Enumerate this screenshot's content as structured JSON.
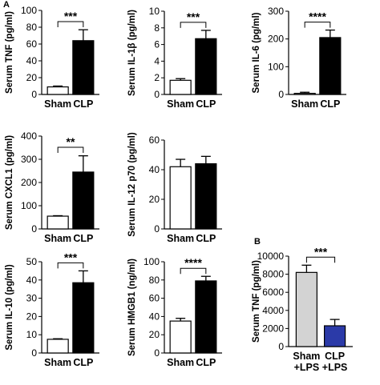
{
  "panel_labels": {
    "a": "A",
    "b": "B"
  },
  "chart_data": [
    {
      "type": "bar",
      "panel": "A",
      "ylabel": "Serum TNF (pg/ml)",
      "categories": [
        "Sham",
        "CLP"
      ],
      "values": [
        9,
        64
      ],
      "errors": [
        1,
        13
      ],
      "ylim": [
        0,
        100
      ],
      "yticks": [
        0,
        20,
        40,
        60,
        80,
        100
      ],
      "significance": "***",
      "bar_colors": [
        "#ffffff",
        "#000000"
      ]
    },
    {
      "type": "bar",
      "panel": "A",
      "ylabel": "Serum IL-1β (pg/ml)",
      "categories": [
        "Sham",
        "CLP"
      ],
      "values": [
        1.7,
        6.7
      ],
      "errors": [
        0.2,
        1.0
      ],
      "ylim": [
        0,
        10
      ],
      "yticks": [
        0,
        2,
        4,
        6,
        8,
        10
      ],
      "significance": "***",
      "bar_colors": [
        "#ffffff",
        "#000000"
      ]
    },
    {
      "type": "bar",
      "panel": "A",
      "ylabel": "Serum IL-6 (pg/ml)",
      "categories": [
        "Sham",
        "CLP"
      ],
      "values": [
        4,
        205
      ],
      "errors": [
        4,
        27
      ],
      "ylim": [
        0,
        300
      ],
      "yticks": [
        0,
        100,
        200,
        300
      ],
      "significance": "****",
      "bar_colors": [
        "#ffffff",
        "#000000"
      ]
    },
    {
      "type": "bar",
      "panel": "A",
      "ylabel": "Serum CXCL1 (pg/ml)",
      "categories": [
        "Sham",
        "CLP"
      ],
      "values": [
        55,
        245
      ],
      "errors": [
        2,
        70
      ],
      "ylim": [
        0,
        400
      ],
      "yticks": [
        0,
        100,
        200,
        300,
        400
      ],
      "significance": "**",
      "bar_colors": [
        "#ffffff",
        "#000000"
      ]
    },
    {
      "type": "bar",
      "panel": "A",
      "ylabel": "Serum IL-12 p70 (pg/ml)",
      "categories": [
        "Sham",
        "CLP"
      ],
      "values": [
        42,
        44
      ],
      "errors": [
        5,
        5
      ],
      "ylim": [
        0,
        60
      ],
      "yticks": [
        0,
        20,
        40,
        60
      ],
      "significance": "",
      "bar_colors": [
        "#ffffff",
        "#000000"
      ]
    },
    {
      "type": "bar",
      "panel": "A",
      "ylabel": "Serum IL-10 (pg/ml)",
      "categories": [
        "Sham",
        "CLP"
      ],
      "values": [
        7.5,
        38.5
      ],
      "errors": [
        0.3,
        6.5
      ],
      "ylim": [
        0,
        50
      ],
      "yticks": [
        0,
        10,
        20,
        30,
        40,
        50
      ],
      "significance": "***",
      "bar_colors": [
        "#ffffff",
        "#000000"
      ]
    },
    {
      "type": "bar",
      "panel": "A",
      "ylabel": "Serum HMGB1 (ng/ml)",
      "categories": [
        "Sham",
        "CLP"
      ],
      "values": [
        35,
        79
      ],
      "errors": [
        3,
        5
      ],
      "ylim": [
        0,
        100
      ],
      "yticks": [
        0,
        20,
        40,
        60,
        80,
        100
      ],
      "significance": "****",
      "bar_colors": [
        "#ffffff",
        "#000000"
      ]
    },
    {
      "type": "bar",
      "panel": "B",
      "ylabel": "Serum TNF (pg/ml)",
      "categories": [
        "Sham\n+LPS",
        "CLP\n+LPS"
      ],
      "values": [
        8200,
        2300
      ],
      "errors": [
        800,
        700
      ],
      "ylim": [
        0,
        10000
      ],
      "yticks": [
        0,
        2000,
        4000,
        6000,
        8000,
        10000
      ],
      "significance": "***",
      "bar_colors": [
        "#d3d3d3",
        "#2b3aa8"
      ]
    }
  ]
}
